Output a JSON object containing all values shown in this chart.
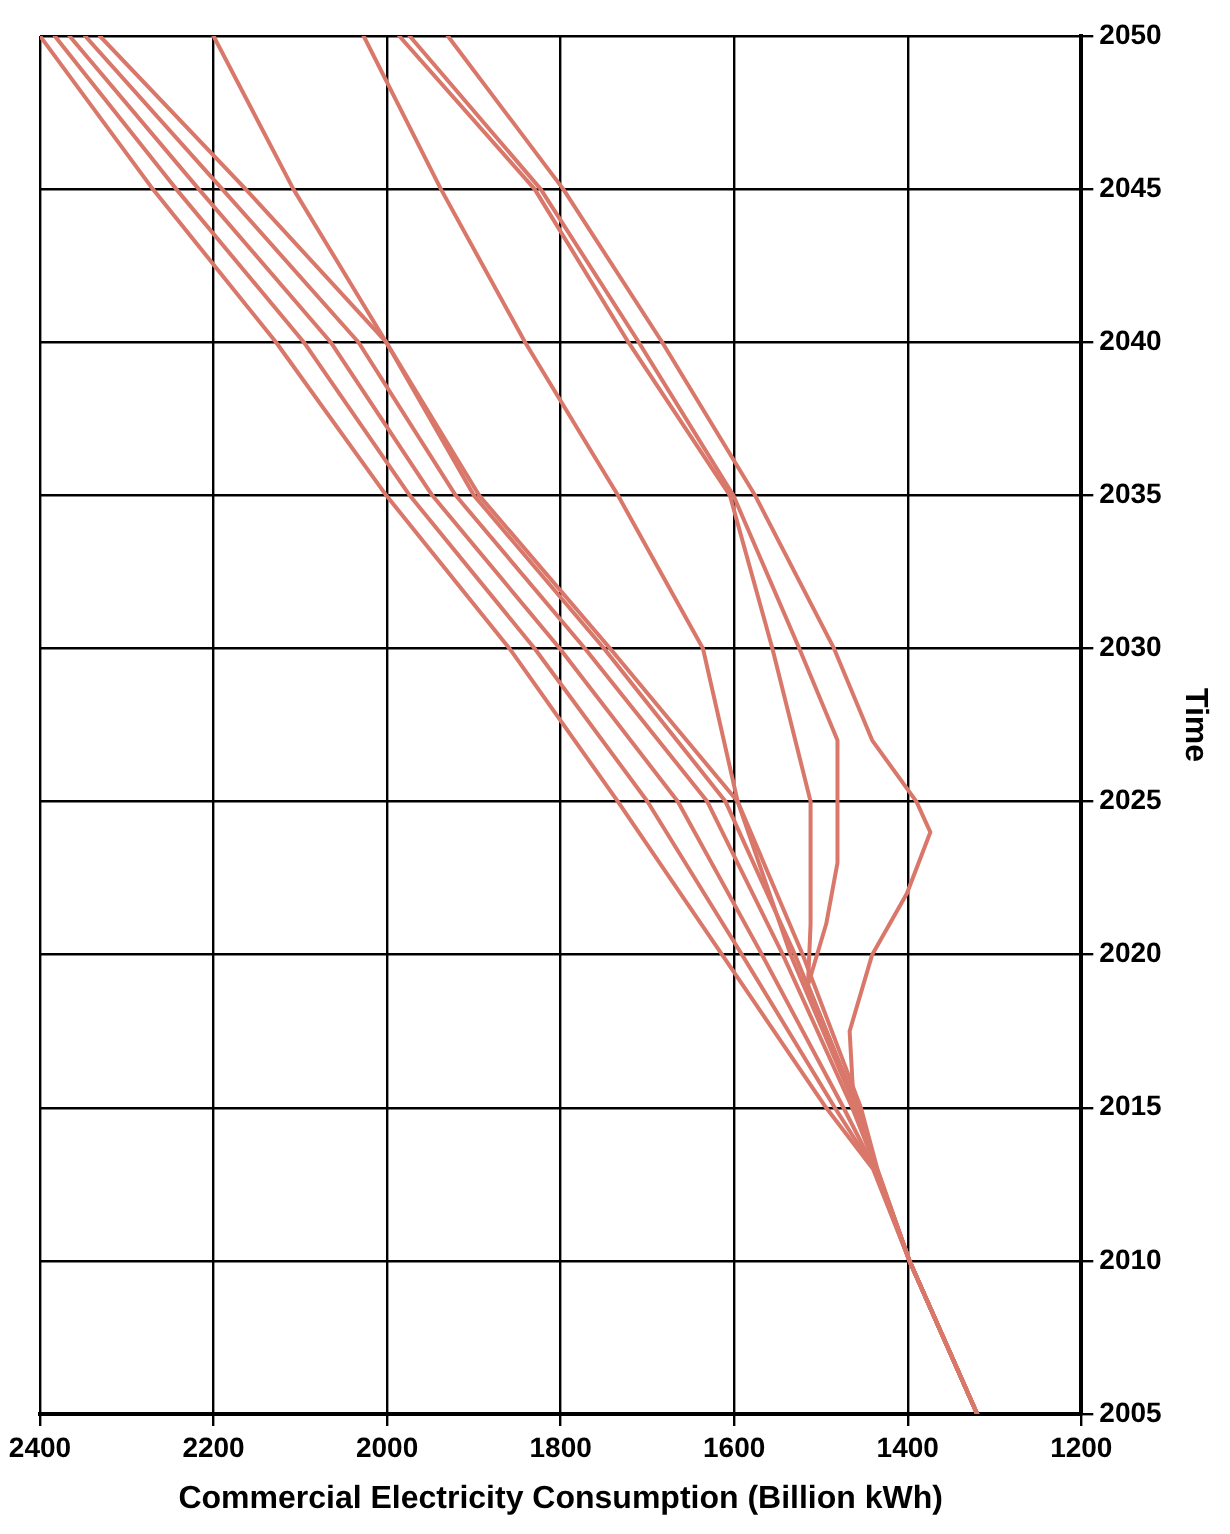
{
  "chart_data": {
    "type": "line",
    "xlabel": "Commercial Electricity Consumption (Billion kWh)",
    "ylabel": "Time",
    "xlim": [
      2400,
      1200
    ],
    "xticks": [
      2400,
      2200,
      2000,
      1800,
      1600,
      1400,
      1200
    ],
    "ylim": [
      2005,
      2050
    ],
    "yticks": [
      2005,
      2010,
      2015,
      2020,
      2025,
      2030,
      2035,
      2040,
      2045,
      2050
    ],
    "grid": true,
    "legend": false,
    "marker": "none",
    "line_style": "solid",
    "series": [
      {
        "color": "#d9786a",
        "x": [
          1320,
          1398,
          1440,
          1494,
          1614,
          1734,
          1859,
          2001,
          2128,
          2270,
          2400
        ],
        "values": [
          2005,
          2010,
          2013,
          2015,
          2020,
          2025,
          2030,
          2035,
          2040,
          2045,
          2050
        ]
      },
      {
        "color": "#d9786a",
        "x": [
          1320,
          1398,
          1439,
          1484,
          1591,
          1700,
          1830,
          1974,
          2096,
          2243,
          2383
        ],
        "values": [
          2005,
          2010,
          2013,
          2015,
          2020,
          2025,
          2030,
          2035,
          2040,
          2045,
          2050
        ]
      },
      {
        "color": "#d9786a",
        "x": [
          1320,
          1398,
          1438,
          1474,
          1568,
          1665,
          1801,
          1948,
          2065,
          2217,
          2366
        ],
        "values": [
          2005,
          2010,
          2013,
          2015,
          2020,
          2025,
          2030,
          2035,
          2040,
          2045,
          2050
        ]
      },
      {
        "color": "#d9786a",
        "x": [
          1320,
          1398,
          1436,
          1464,
          1544,
          1631,
          1772,
          1921,
          2033,
          2190,
          2348
        ],
        "values": [
          2005,
          2010,
          2013,
          2015,
          2020,
          2025,
          2030,
          2035,
          2040,
          2045,
          2050
        ]
      },
      {
        "color": "#d9786a",
        "x": [
          1320,
          1398,
          1435,
          1454,
          1521,
          1596,
          1743,
          1894,
          2001,
          2163,
          2331
        ],
        "values": [
          2005,
          2010,
          2013,
          2015,
          2020,
          2025,
          2030,
          2035,
          2040,
          2045,
          2050
        ]
      },
      {
        "color": "#d9786a",
        "x": [
          1320,
          1398,
          1436,
          1458,
          1530,
          1610,
          1750,
          1900,
          2001,
          2108,
          2200
        ],
        "values": [
          2005,
          2010,
          2013,
          2015,
          2020,
          2025,
          2030,
          2035,
          2040,
          2045,
          2050
        ]
      },
      {
        "color": "#d9786a",
        "x": [
          1320,
          1398,
          1436,
          1460,
          1535,
          1596,
          1636,
          1734,
          1841,
          1938,
          2027
        ],
        "values": [
          2005,
          2010,
          2013,
          2015,
          2020,
          2025,
          2030,
          2035,
          2040,
          2045,
          2050
        ]
      },
      {
        "color": "#d9786a",
        "x": [
          1320,
          1398,
          1436,
          1462,
          1467,
          1441,
          1401,
          1374,
          1390,
          1441,
          1485,
          1576,
          1683,
          1797,
          1930
        ],
        "values": [
          2005,
          2010,
          2013,
          2015,
          2017.5,
          2020,
          2022,
          2024,
          2025,
          2027,
          2030,
          2035,
          2040,
          2045,
          2050
        ]
      },
      {
        "color": "#d9786a",
        "x": [
          1320,
          1398,
          1436,
          1458,
          1515,
          1494,
          1481,
          1481,
          1525,
          1601,
          1710,
          1823,
          1974
        ],
        "values": [
          2005,
          2010,
          2013,
          2015,
          2019,
          2021,
          2023,
          2027,
          2030,
          2035,
          2040,
          2045,
          2050
        ]
      },
      {
        "color": "#d9786a",
        "x": [
          1320,
          1398,
          1436,
          1458,
          1515,
          1512,
          1512,
          1556,
          1605,
          1722,
          1830,
          1986
        ],
        "values": [
          2005,
          2010,
          2013,
          2015,
          2019,
          2021,
          2025,
          2030,
          2035,
          2040,
          2045,
          2050
        ]
      }
    ]
  }
}
